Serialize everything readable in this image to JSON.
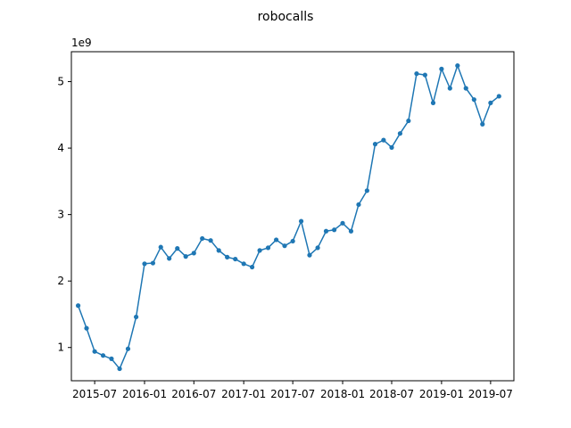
{
  "chart_data": {
    "type": "line",
    "title": "robocalls",
    "xlabel": "",
    "ylabel": "",
    "y_offset_label": "1e9",
    "grid": false,
    "legend": "none",
    "color": "#1f77b4",
    "xlim": [
      "2015-04-06",
      "2019-09-25"
    ],
    "ylim": [
      0.5,
      5.45
    ],
    "x_ticks": [
      {
        "date": "2015-07-01",
        "label": "2015-07"
      },
      {
        "date": "2016-01-01",
        "label": "2016-01"
      },
      {
        "date": "2016-07-01",
        "label": "2016-07"
      },
      {
        "date": "2017-01-01",
        "label": "2017-01"
      },
      {
        "date": "2017-07-01",
        "label": "2017-07"
      },
      {
        "date": "2018-01-01",
        "label": "2018-01"
      },
      {
        "date": "2018-07-01",
        "label": "2018-07"
      },
      {
        "date": "2019-01-01",
        "label": "2019-01"
      },
      {
        "date": "2019-07-01",
        "label": "2019-07"
      }
    ],
    "y_ticks": [
      {
        "value": 1,
        "label": "1"
      },
      {
        "value": 2,
        "label": "2"
      },
      {
        "value": 3,
        "label": "3"
      },
      {
        "value": 4,
        "label": "4"
      },
      {
        "value": 5,
        "label": "5"
      }
    ],
    "series": [
      {
        "x": [
          "2015-05-01",
          "2015-06-01",
          "2015-07-01",
          "2015-08-01",
          "2015-09-01",
          "2015-10-01",
          "2015-11-01",
          "2015-12-01",
          "2016-01-01",
          "2016-02-01",
          "2016-03-01",
          "2016-04-01",
          "2016-05-01",
          "2016-06-01",
          "2016-07-01",
          "2016-08-01",
          "2016-09-01",
          "2016-10-01",
          "2016-11-01",
          "2016-12-01",
          "2017-01-01",
          "2017-02-01",
          "2017-03-01",
          "2017-04-01",
          "2017-05-01",
          "2017-06-01",
          "2017-07-01",
          "2017-08-01",
          "2017-09-01",
          "2017-10-01",
          "2017-11-01",
          "2017-12-01",
          "2018-01-01",
          "2018-02-01",
          "2018-03-01",
          "2018-04-01",
          "2018-05-01",
          "2018-06-01",
          "2018-07-01",
          "2018-08-01",
          "2018-09-01",
          "2018-10-01",
          "2018-11-01",
          "2018-12-01",
          "2019-01-01",
          "2019-02-01",
          "2019-03-01",
          "2019-04-01",
          "2019-05-01",
          "2019-06-01",
          "2019-07-01",
          "2019-08-01"
        ],
        "values": [
          1.63,
          1.29,
          0.94,
          0.88,
          0.83,
          0.68,
          0.98,
          1.46,
          2.26,
          2.27,
          2.51,
          2.34,
          2.49,
          2.37,
          2.42,
          2.64,
          2.61,
          2.46,
          2.36,
          2.33,
          2.26,
          2.21,
          2.46,
          2.5,
          2.62,
          2.53,
          2.6,
          2.9,
          2.39,
          2.5,
          2.75,
          2.77,
          2.87,
          2.75,
          3.15,
          3.36,
          4.06,
          4.12,
          4.01,
          4.22,
          4.41,
          5.12,
          5.1,
          4.68,
          5.19,
          4.9,
          5.24,
          4.9,
          4.73,
          4.36,
          4.68,
          4.78
        ]
      }
    ]
  }
}
